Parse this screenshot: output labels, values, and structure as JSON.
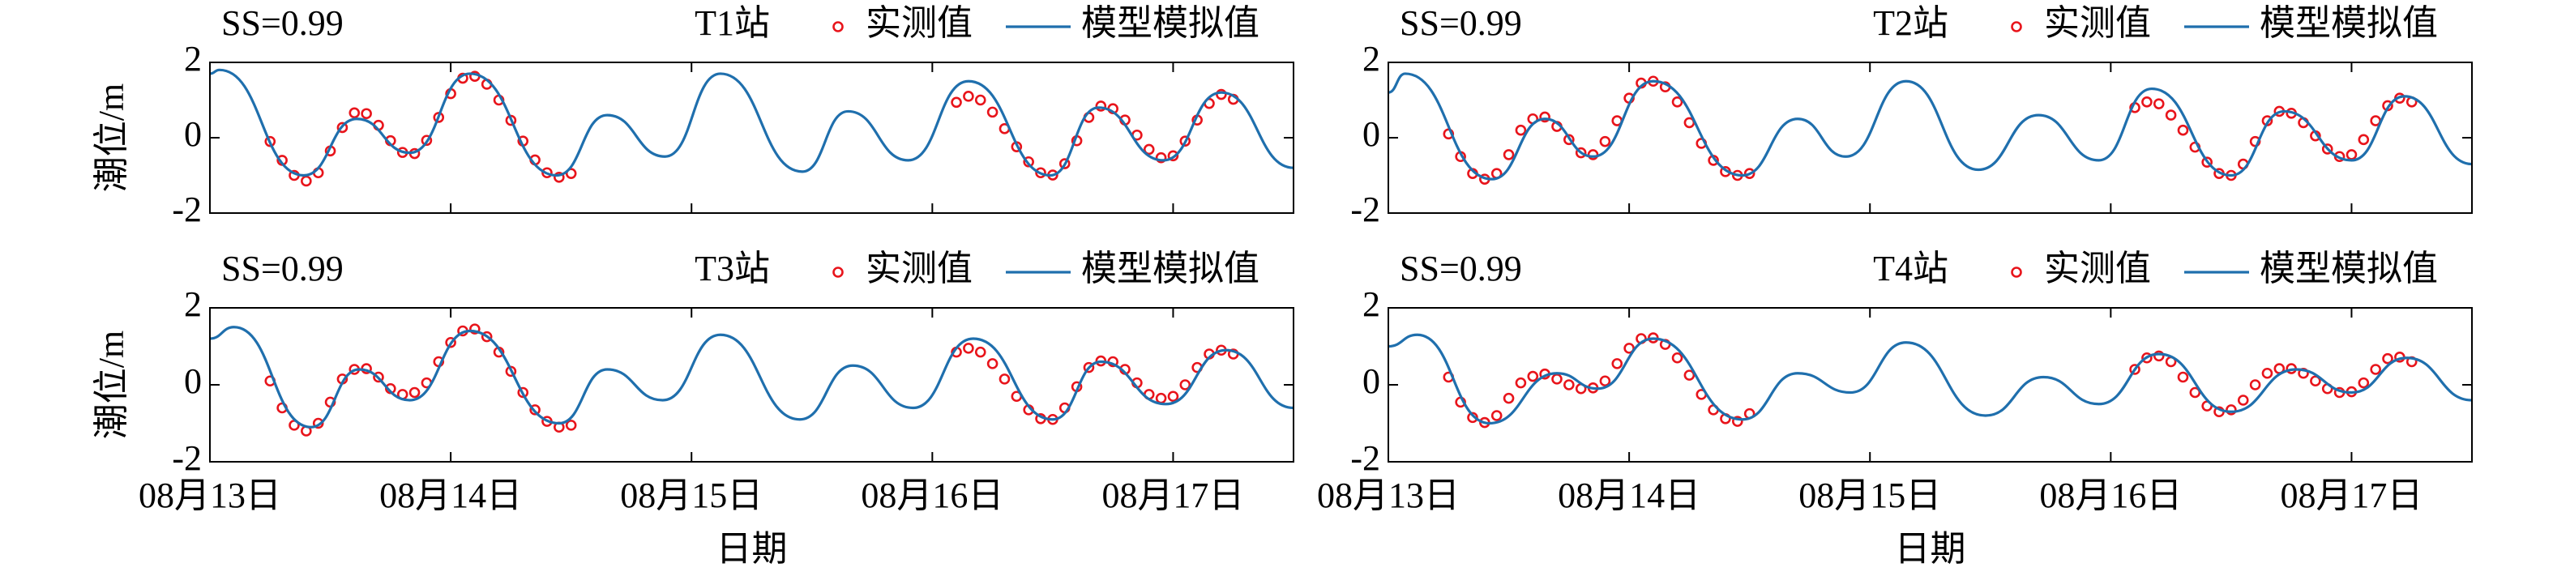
{
  "chart_data": [
    {
      "type": "line",
      "title": "T1站",
      "annotation": "SS=0.99",
      "ylabel": "潮位/m",
      "xlim": [
        13,
        17.5
      ],
      "xticks": [
        13,
        14,
        15,
        16,
        17
      ],
      "ylim": [
        -2,
        2
      ],
      "yticks": [
        -2,
        0,
        2
      ],
      "legend": "top-right",
      "series": [
        {
          "name": "实测值",
          "color": "#e8141b",
          "style": "markers",
          "x": [
            13.25,
            13.3,
            13.35,
            13.4,
            13.45,
            13.5,
            13.55,
            13.6,
            13.65,
            13.7,
            13.75,
            13.8,
            13.85,
            13.9,
            13.95,
            14.0,
            14.05,
            14.1,
            14.15,
            14.2,
            14.25,
            14.3,
            14.35,
            14.4,
            14.45,
            14.5,
            16.1,
            16.15,
            16.2,
            16.25,
            16.3,
            16.35,
            16.4,
            16.45,
            16.5,
            16.55,
            16.6,
            16.65,
            16.7,
            16.75,
            16.8,
            16.85,
            16.9,
            16.95,
            17.0,
            17.05,
            17.1,
            17.15,
            17.2,
            17.25
          ],
          "values": [
            -0.1,
            -0.6,
            -1.0,
            -1.15,
            -0.93,
            -0.35,
            0.27,
            0.66,
            0.64,
            0.33,
            -0.08,
            -0.39,
            -0.42,
            -0.07,
            0.54,
            1.17,
            1.58,
            1.63,
            1.42,
            1.0,
            0.46,
            -0.09,
            -0.59,
            -0.93,
            -1.05,
            -0.95,
            0.94,
            1.1,
            1.0,
            0.68,
            0.24,
            -0.24,
            -0.64,
            -0.93,
            -0.99,
            -0.69,
            -0.08,
            0.54,
            0.84,
            0.77,
            0.47,
            0.07,
            -0.31,
            -0.53,
            -0.48,
            -0.09,
            0.47,
            0.91,
            1.15,
            1.02
          ]
        },
        {
          "name": "模型模拟值",
          "color": "#1f6fad",
          "style": "line",
          "x": [
            13.0,
            13.04,
            13.39,
            13.61,
            13.83,
            14.08,
            14.44,
            14.65,
            14.89,
            15.12,
            15.46,
            15.65,
            15.9,
            16.15,
            16.49,
            16.69,
            16.96,
            17.2,
            17.5
          ],
          "values": [
            1.7,
            1.8,
            -1.0,
            0.5,
            -0.4,
            1.7,
            -1.0,
            0.6,
            -0.5,
            1.7,
            -0.9,
            0.7,
            -0.6,
            1.5,
            -1.0,
            0.8,
            -0.6,
            1.2,
            -0.8
          ]
        }
      ]
    },
    {
      "type": "line",
      "title": "T2站",
      "annotation": "SS=0.99",
      "xlim": [
        13,
        17.5
      ],
      "xticks": [
        13,
        14,
        15,
        16,
        17
      ],
      "ylim": [
        -2,
        2
      ],
      "yticks": [
        -2,
        0,
        2
      ],
      "legend": "top-right",
      "series": [
        {
          "name": "实测值",
          "color": "#e8141b",
          "style": "markers",
          "x": [
            13.25,
            13.3,
            13.35,
            13.4,
            13.45,
            13.5,
            13.55,
            13.6,
            13.65,
            13.7,
            13.75,
            13.8,
            13.85,
            13.9,
            13.95,
            14.0,
            14.05,
            14.1,
            14.15,
            14.2,
            14.25,
            14.3,
            14.35,
            14.4,
            14.45,
            14.5,
            16.1,
            16.15,
            16.2,
            16.25,
            16.3,
            16.35,
            16.4,
            16.45,
            16.5,
            16.55,
            16.6,
            16.65,
            16.7,
            16.75,
            16.8,
            16.85,
            16.9,
            16.95,
            17.0,
            17.05,
            17.1,
            17.15,
            17.2,
            17.25
          ],
          "values": [
            0.1,
            -0.5,
            -0.95,
            -1.1,
            -0.95,
            -0.45,
            0.2,
            0.5,
            0.55,
            0.3,
            -0.05,
            -0.4,
            -0.45,
            -0.1,
            0.45,
            1.05,
            1.45,
            1.5,
            1.35,
            0.95,
            0.4,
            -0.15,
            -0.6,
            -0.9,
            -1.0,
            -0.95,
            0.8,
            0.95,
            0.9,
            0.6,
            0.2,
            -0.25,
            -0.65,
            -0.95,
            -1.0,
            -0.7,
            -0.1,
            0.45,
            0.7,
            0.65,
            0.4,
            0.05,
            -0.3,
            -0.5,
            -0.45,
            -0.05,
            0.45,
            0.85,
            1.05,
            0.95
          ]
        },
        {
          "name": "模型模拟值",
          "color": "#1f6fad",
          "style": "line",
          "x": [
            13.0,
            13.07,
            13.43,
            13.65,
            13.85,
            14.1,
            14.47,
            14.7,
            14.9,
            15.15,
            15.45,
            15.7,
            15.95,
            16.17,
            16.5,
            16.72,
            17.0,
            17.22,
            17.5
          ],
          "values": [
            1.2,
            1.7,
            -1.1,
            0.5,
            -0.5,
            1.5,
            -1.0,
            0.5,
            -0.5,
            1.5,
            -0.85,
            0.6,
            -0.6,
            1.3,
            -1.0,
            0.7,
            -0.6,
            1.1,
            -0.7
          ]
        }
      ]
    },
    {
      "type": "line",
      "title": "T3站",
      "annotation": "SS=0.99",
      "ylabel": "潮位/m",
      "xlabel": "日期",
      "xlim": [
        13,
        17.5
      ],
      "xticks": [
        {
          "value": 13,
          "label": "08月13日"
        },
        {
          "value": 14,
          "label": "08月14日"
        },
        {
          "value": 15,
          "label": "08月15日"
        },
        {
          "value": 16,
          "label": "08月16日"
        },
        {
          "value": 17,
          "label": "08月17日"
        }
      ],
      "ylim": [
        -2,
        2
      ],
      "yticks": [
        -2,
        0,
        2
      ],
      "legend": "top-right",
      "series": [
        {
          "name": "实测值",
          "color": "#e8141b",
          "style": "markers",
          "x": [
            13.25,
            13.3,
            13.35,
            13.4,
            13.45,
            13.5,
            13.55,
            13.6,
            13.65,
            13.7,
            13.75,
            13.8,
            13.85,
            13.9,
            13.95,
            14.0,
            14.05,
            14.1,
            14.15,
            14.2,
            14.25,
            14.3,
            14.35,
            14.4,
            14.45,
            14.5,
            16.1,
            16.15,
            16.2,
            16.25,
            16.3,
            16.35,
            16.4,
            16.45,
            16.5,
            16.55,
            16.6,
            16.65,
            16.7,
            16.75,
            16.8,
            16.85,
            16.9,
            16.95,
            17.0,
            17.05,
            17.1,
            17.15,
            17.2,
            17.25
          ],
          "values": [
            0.1,
            -0.6,
            -1.05,
            -1.2,
            -1.0,
            -0.45,
            0.15,
            0.4,
            0.42,
            0.2,
            -0.1,
            -0.25,
            -0.2,
            0.05,
            0.6,
            1.1,
            1.4,
            1.45,
            1.25,
            0.85,
            0.35,
            -0.2,
            -0.65,
            -0.95,
            -1.1,
            -1.05,
            0.85,
            0.95,
            0.85,
            0.55,
            0.15,
            -0.3,
            -0.65,
            -0.88,
            -0.9,
            -0.6,
            -0.05,
            0.45,
            0.62,
            0.6,
            0.4,
            0.05,
            -0.25,
            -0.35,
            -0.3,
            0.0,
            0.45,
            0.8,
            0.9,
            0.8
          ]
        },
        {
          "name": "模型模拟值",
          "color": "#1f6fad",
          "style": "line",
          "x": [
            13.0,
            13.1,
            13.42,
            13.62,
            13.83,
            14.08,
            14.45,
            14.65,
            14.88,
            15.12,
            15.45,
            15.67,
            15.92,
            16.17,
            16.5,
            16.7,
            16.97,
            17.22,
            17.5
          ],
          "values": [
            1.2,
            1.5,
            -1.1,
            0.4,
            -0.4,
            1.4,
            -1.0,
            0.4,
            -0.4,
            1.3,
            -0.9,
            0.5,
            -0.6,
            1.2,
            -0.9,
            0.6,
            -0.5,
            0.9,
            -0.6
          ]
        }
      ]
    },
    {
      "type": "line",
      "title": "T4站",
      "annotation": "SS=0.99",
      "xlabel": "日期",
      "xlim": [
        13,
        17.5
      ],
      "xticks": [
        {
          "value": 13,
          "label": "08月13日"
        },
        {
          "value": 14,
          "label": "08月14日"
        },
        {
          "value": 15,
          "label": "08月15日"
        },
        {
          "value": 16,
          "label": "08月16日"
        },
        {
          "value": 17,
          "label": "08月17日"
        }
      ],
      "ylim": [
        -2,
        2
      ],
      "yticks": [
        -2,
        0,
        2
      ],
      "legend": "top-right",
      "series": [
        {
          "name": "实测值",
          "color": "#e8141b",
          "style": "markers",
          "x": [
            13.25,
            13.3,
            13.35,
            13.4,
            13.45,
            13.5,
            13.55,
            13.6,
            13.65,
            13.7,
            13.75,
            13.8,
            13.85,
            13.9,
            13.95,
            14.0,
            14.05,
            14.1,
            14.15,
            14.2,
            14.25,
            14.3,
            14.35,
            14.4,
            14.45,
            14.5,
            16.1,
            16.15,
            16.2,
            16.25,
            16.3,
            16.35,
            16.4,
            16.45,
            16.5,
            16.55,
            16.6,
            16.65,
            16.7,
            16.75,
            16.8,
            16.85,
            16.9,
            16.95,
            17.0,
            17.05,
            17.1,
            17.15,
            17.2,
            17.25
          ],
          "values": [
            0.2,
            -0.45,
            -0.85,
            -0.98,
            -0.8,
            -0.35,
            0.05,
            0.22,
            0.28,
            0.15,
            0.0,
            -0.1,
            -0.08,
            0.1,
            0.55,
            0.95,
            1.2,
            1.22,
            1.05,
            0.7,
            0.25,
            -0.25,
            -0.65,
            -0.88,
            -0.95,
            -0.75,
            0.4,
            0.7,
            0.75,
            0.6,
            0.2,
            -0.2,
            -0.55,
            -0.7,
            -0.65,
            -0.4,
            0.0,
            0.3,
            0.42,
            0.42,
            0.3,
            0.1,
            -0.1,
            -0.2,
            -0.18,
            0.05,
            0.4,
            0.68,
            0.72,
            0.6
          ]
        },
        {
          "name": "模型模拟值",
          "color": "#1f6fad",
          "style": "line",
          "x": [
            13.0,
            13.12,
            13.42,
            13.7,
            13.87,
            14.1,
            14.47,
            14.7,
            14.92,
            15.15,
            15.48,
            15.72,
            15.95,
            16.2,
            16.5,
            16.77,
            17.0,
            17.23,
            17.5
          ],
          "values": [
            1.0,
            1.3,
            -1.0,
            0.3,
            -0.1,
            1.2,
            -0.9,
            0.3,
            -0.2,
            1.1,
            -0.8,
            0.2,
            -0.5,
            0.8,
            -0.7,
            0.4,
            -0.2,
            0.7,
            -0.4
          ]
        }
      ]
    }
  ]
}
